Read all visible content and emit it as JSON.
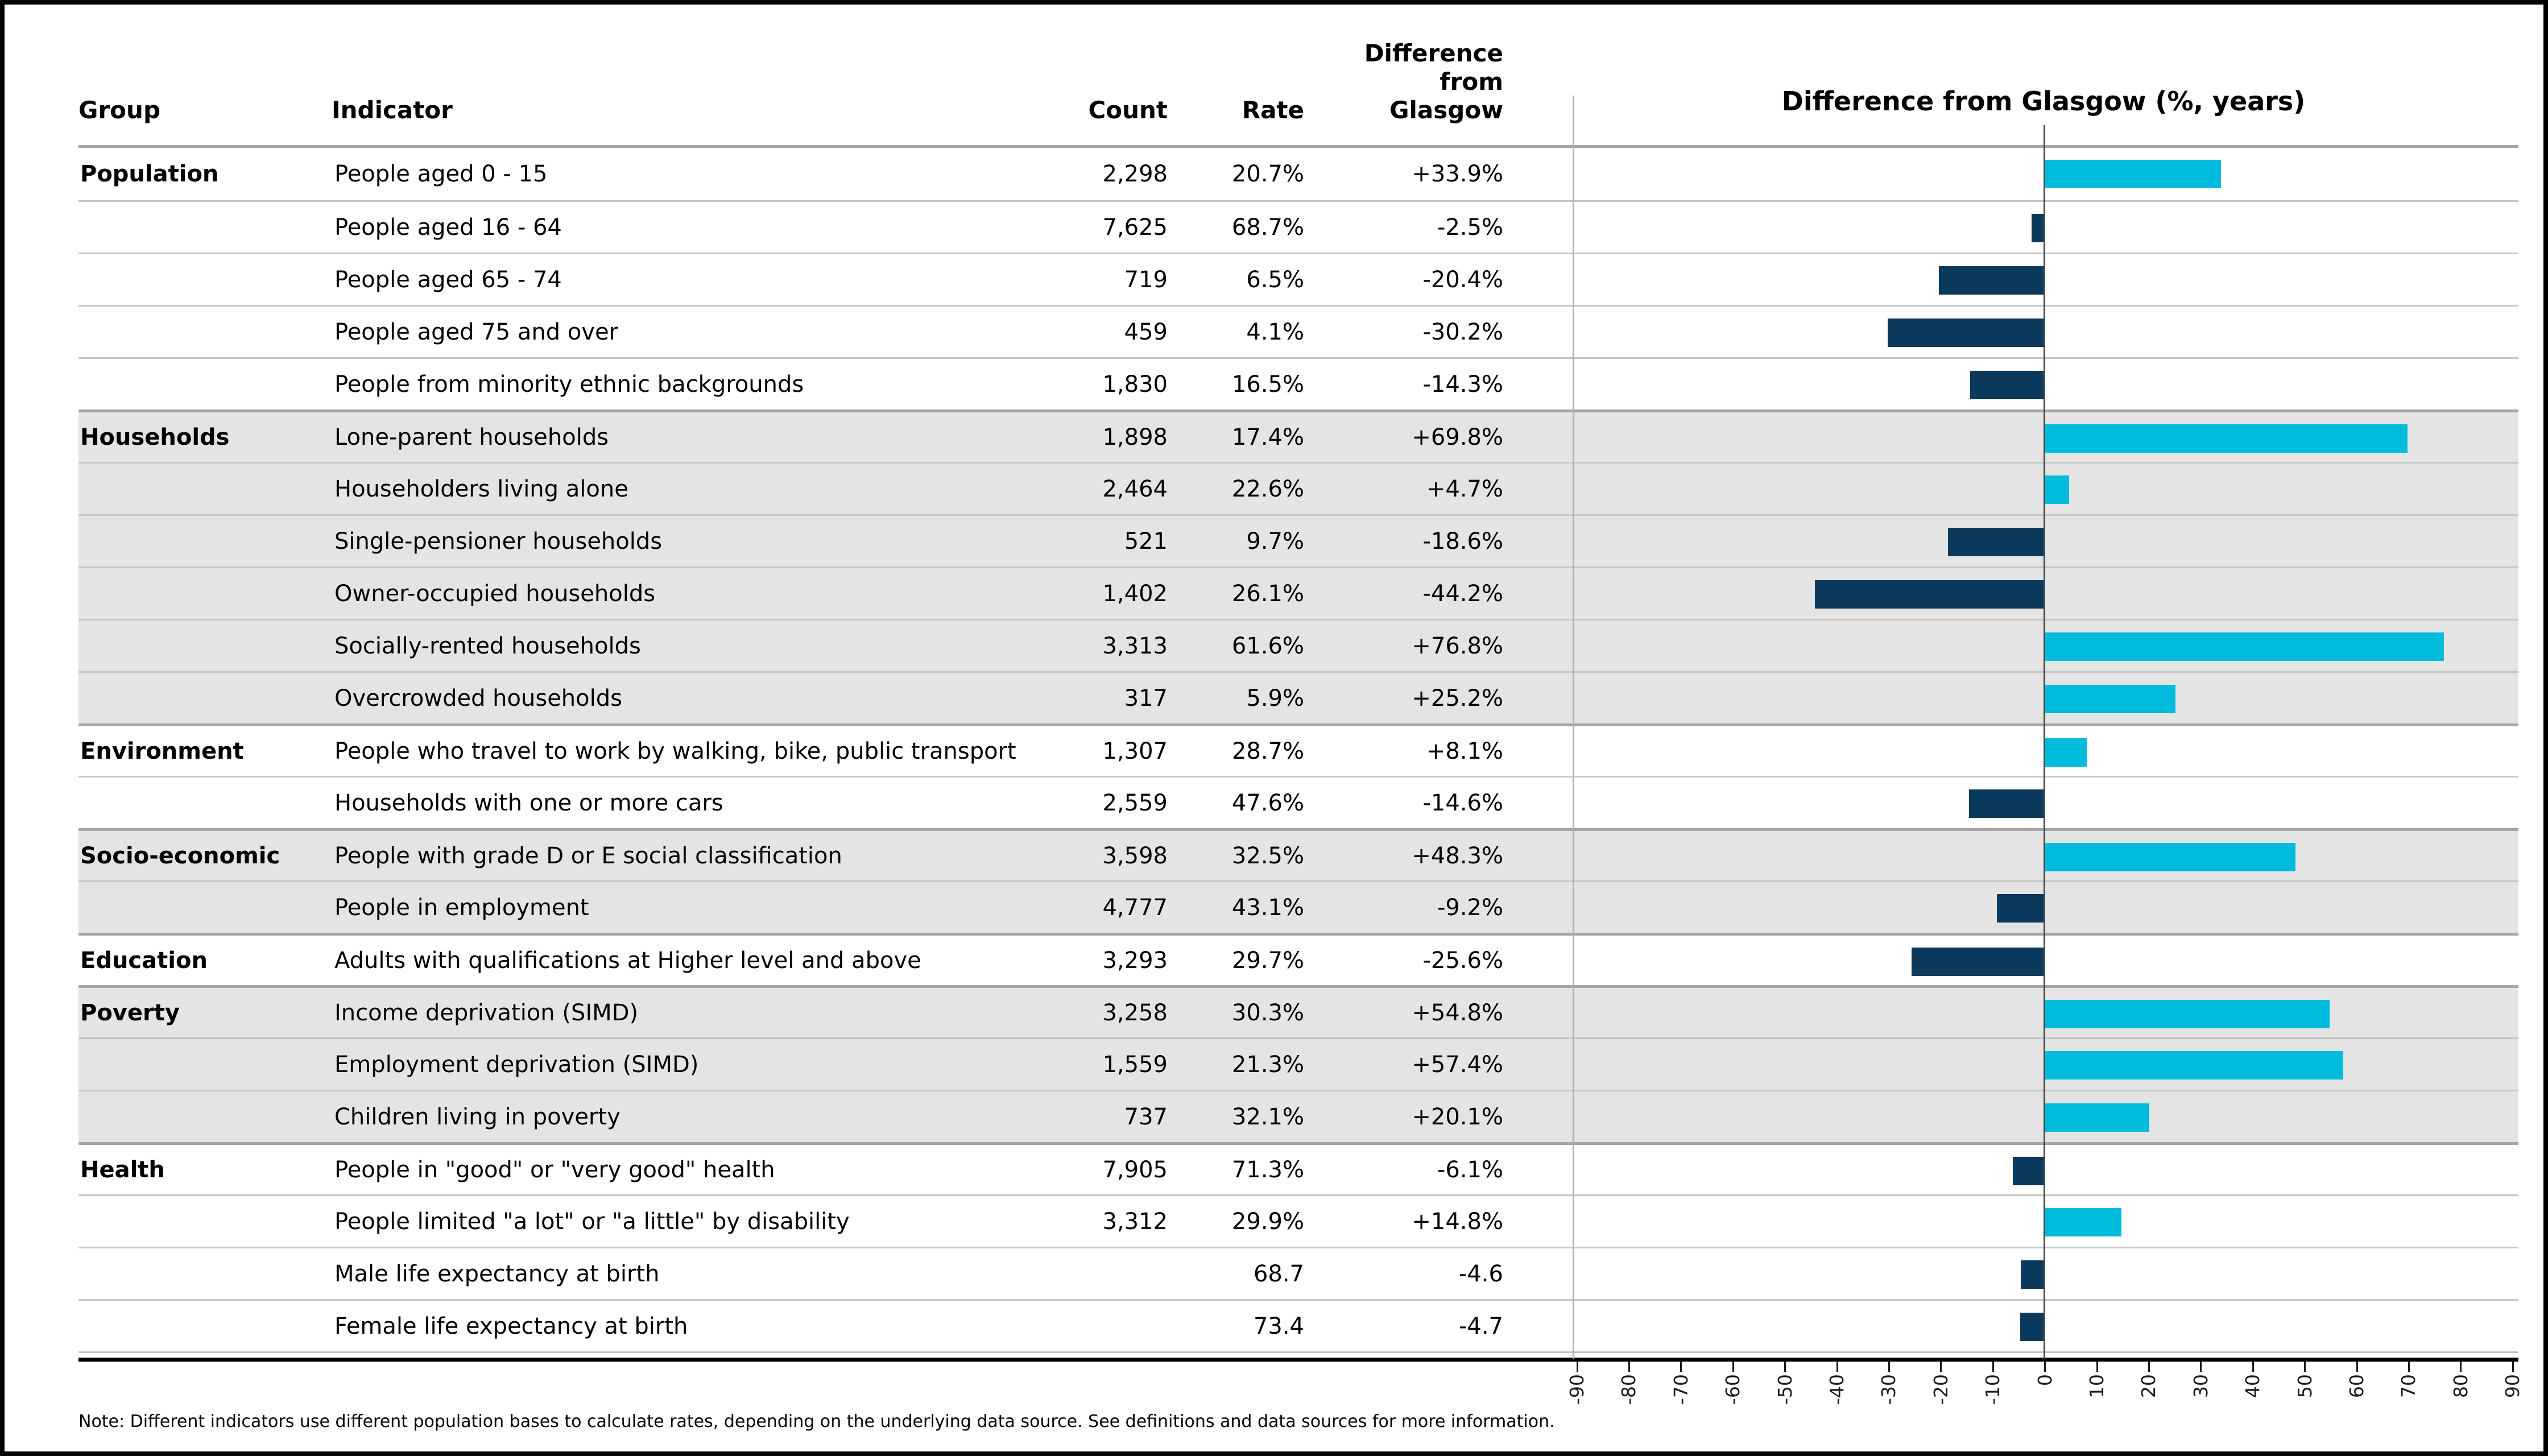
{
  "header": {
    "group": "Group",
    "indicator": "Indicator",
    "count": "Count",
    "rate": "Rate",
    "difference_lines": [
      "Difference",
      "from",
      "Glasgow"
    ],
    "chart_title": "Difference from Glasgow (%, years)"
  },
  "groups": [
    {
      "name": "Population",
      "shaded": false,
      "rows": [
        {
          "indicator": "People aged 0 - 15",
          "count": "2,298",
          "rate": "20.7%",
          "difference": "+33.9%",
          "value": 33.9
        },
        {
          "indicator": "People aged 16 - 64",
          "count": "7,625",
          "rate": "68.7%",
          "difference": "-2.5%",
          "value": -2.5
        },
        {
          "indicator": "People aged 65 - 74",
          "count": "719",
          "rate": "6.5%",
          "difference": "-20.4%",
          "value": -20.4
        },
        {
          "indicator": "People aged 75 and over",
          "count": "459",
          "rate": "4.1%",
          "difference": "-30.2%",
          "value": -30.2
        },
        {
          "indicator": "People from minority ethnic backgrounds",
          "count": "1,830",
          "rate": "16.5%",
          "difference": "-14.3%",
          "value": -14.3
        }
      ]
    },
    {
      "name": "Households",
      "shaded": true,
      "rows": [
        {
          "indicator": "Lone-parent households",
          "count": "1,898",
          "rate": "17.4%",
          "difference": "+69.8%",
          "value": 69.8
        },
        {
          "indicator": "Householders living alone",
          "count": "2,464",
          "rate": "22.6%",
          "difference": "+4.7%",
          "value": 4.7
        },
        {
          "indicator": "Single-pensioner households",
          "count": "521",
          "rate": "9.7%",
          "difference": "-18.6%",
          "value": -18.6
        },
        {
          "indicator": "Owner-occupied households",
          "count": "1,402",
          "rate": "26.1%",
          "difference": "-44.2%",
          "value": -44.2
        },
        {
          "indicator": "Socially-rented households",
          "count": "3,313",
          "rate": "61.6%",
          "difference": "+76.8%",
          "value": 76.8
        },
        {
          "indicator": "Overcrowded households",
          "count": "317",
          "rate": "5.9%",
          "difference": "+25.2%",
          "value": 25.2
        }
      ]
    },
    {
      "name": "Environment",
      "shaded": false,
      "rows": [
        {
          "indicator": "People who travel to work by walking, bike, public transport",
          "count": "1,307",
          "rate": "28.7%",
          "difference": "+8.1%",
          "value": 8.1
        },
        {
          "indicator": "Households with one or more cars",
          "count": "2,559",
          "rate": "47.6%",
          "difference": "-14.6%",
          "value": -14.6
        }
      ]
    },
    {
      "name": "Socio-economic",
      "shaded": true,
      "rows": [
        {
          "indicator": "People with grade D or E social classification",
          "count": "3,598",
          "rate": "32.5%",
          "difference": "+48.3%",
          "value": 48.3
        },
        {
          "indicator": "People in employment",
          "count": "4,777",
          "rate": "43.1%",
          "difference": "-9.2%",
          "value": -9.2
        }
      ]
    },
    {
      "name": "Education",
      "shaded": false,
      "rows": [
        {
          "indicator": "Adults with qualifications at Higher level and above",
          "count": "3,293",
          "rate": "29.7%",
          "difference": "-25.6%",
          "value": -25.6
        }
      ]
    },
    {
      "name": "Poverty",
      "shaded": true,
      "rows": [
        {
          "indicator": "Income deprivation (SIMD)",
          "count": "3,258",
          "rate": "30.3%",
          "difference": "+54.8%",
          "value": 54.8
        },
        {
          "indicator": "Employment deprivation (SIMD)",
          "count": "1,559",
          "rate": "21.3%",
          "difference": "+57.4%",
          "value": 57.4
        },
        {
          "indicator": "Children living in poverty",
          "count": "737",
          "rate": "32.1%",
          "difference": "+20.1%",
          "value": 20.1
        }
      ]
    },
    {
      "name": "Health",
      "shaded": false,
      "rows": [
        {
          "indicator": "People in \"good\" or \"very good\" health",
          "count": "7,905",
          "rate": "71.3%",
          "difference": "-6.1%",
          "value": -6.1
        },
        {
          "indicator": "People limited \"a lot\" or \"a little\" by disability",
          "count": "3,312",
          "rate": "29.9%",
          "difference": "+14.8%",
          "value": 14.8
        },
        {
          "indicator": "Male life expectancy at birth",
          "count": "",
          "rate": "68.7",
          "difference": "-4.6",
          "value": -4.6
        },
        {
          "indicator": "Female life expectancy at birth",
          "count": "",
          "rate": "73.4",
          "difference": "-4.7",
          "value": -4.7
        }
      ]
    }
  ],
  "axis": {
    "min": -90,
    "max": 90,
    "step": 10,
    "tick_labels": [
      "-90",
      "-80",
      "-70",
      "-60",
      "-50",
      "-40",
      "-30",
      "-20",
      "-10",
      "0",
      "10",
      "20",
      "30",
      "40",
      "50",
      "60",
      "70",
      "80",
      "90"
    ]
  },
  "note": "Note: Different indicators use different population bases to calculate rates, depending on the underlying data source. See definitions and data sources for more information.",
  "colors": {
    "positive_bar": "#00bcdc",
    "negative_bar": "#0b3a5c",
    "shaded_row": "#e4e4e4",
    "row_separator": "#c6c6c6",
    "group_separator": "#a6a6a6",
    "zero_line": "#4d4d4d",
    "boundary_line": "#b3b3b3",
    "axis_line": "#000000"
  },
  "chart_data": {
    "type": "bar",
    "orientation": "horizontal",
    "title": "Difference from Glasgow (%, years)",
    "xlabel": "Difference from Glasgow (%, years)",
    "xlim": [
      -90,
      90
    ],
    "xticks": [
      -90,
      -80,
      -70,
      -60,
      -50,
      -40,
      -30,
      -20,
      -10,
      0,
      10,
      20,
      30,
      40,
      50,
      60,
      70,
      80,
      90
    ],
    "grid": false,
    "legend": "none",
    "categories": [
      "People aged 0 - 15",
      "People aged 16 - 64",
      "People aged 65 - 74",
      "People aged 75 and over",
      "People from minority ethnic backgrounds",
      "Lone-parent households",
      "Householders living alone",
      "Single-pensioner households",
      "Owner-occupied households",
      "Socially-rented households",
      "Overcrowded households",
      "People who travel to work by walking, bike, public transport",
      "Households with one or more cars",
      "People with grade D or E social classification",
      "People in employment",
      "Adults with qualifications at Higher level and above",
      "Income deprivation (SIMD)",
      "Employment deprivation (SIMD)",
      "Children living in poverty",
      "People in \"good\" or \"very good\" health",
      "People limited \"a lot\" or \"a little\" by disability",
      "Male life expectancy at birth",
      "Female life expectancy at birth"
    ],
    "values": [
      33.9,
      -2.5,
      -20.4,
      -30.2,
      -14.3,
      69.8,
      4.7,
      -18.6,
      -44.2,
      76.8,
      25.2,
      8.1,
      -14.6,
      48.3,
      -9.2,
      -25.6,
      54.8,
      57.4,
      20.1,
      -6.1,
      14.8,
      -4.6,
      -4.7
    ]
  }
}
